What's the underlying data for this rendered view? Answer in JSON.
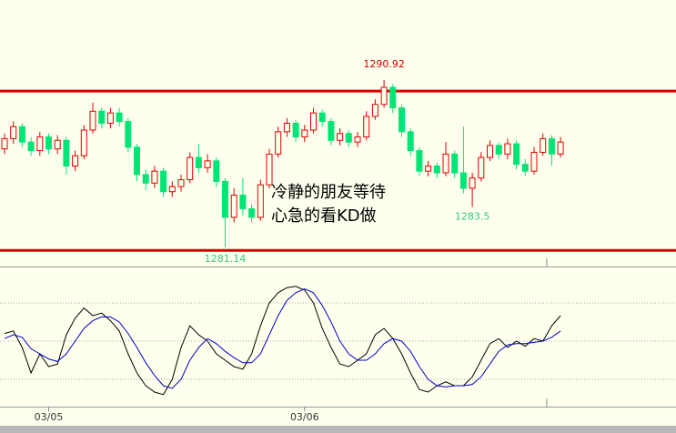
{
  "chart_data": [
    {
      "type": "candlestick",
      "categories": [
        null,
        null,
        null,
        null,
        null,
        "03/05",
        null,
        null,
        null,
        null,
        null,
        null,
        null,
        null,
        null,
        null,
        null,
        null,
        null,
        null,
        null,
        null,
        null,
        null,
        null,
        null,
        null,
        null,
        null,
        null,
        null,
        null,
        null,
        null,
        "03/06",
        null,
        null,
        null,
        null,
        null,
        null,
        null,
        null,
        null,
        null,
        null,
        null,
        null,
        null,
        null,
        null,
        null,
        null,
        null,
        null,
        null,
        null,
        null,
        null,
        null,
        null,
        null,
        null,
        null
      ],
      "open": [
        1286.9,
        1287.5,
        1288.2,
        1287.3,
        1286.8,
        1287.6,
        1286.9,
        1287.4,
        1285.9,
        1286.5,
        1288.0,
        1289.1,
        1288.4,
        1289.0,
        1288.5,
        1287.0,
        1285.4,
        1284.9,
        1285.6,
        1284.4,
        1284.7,
        1285.1,
        1286.4,
        1285.8,
        1286.2,
        1285.0,
        1282.9,
        1284.2,
        1283.4,
        1282.9,
        1284.8,
        1286.6,
        1287.9,
        1288.4,
        1287.6,
        1288.0,
        1289.0,
        1288.5,
        1287.4,
        1287.8,
        1287.3,
        1287.6,
        1288.8,
        1289.5,
        1290.5,
        1289.3,
        1287.9,
        1286.8,
        1285.6,
        1285.9,
        1285.5,
        1286.6,
        1285.5,
        1284.6,
        1285.2,
        1286.4,
        1287.1,
        1286.6,
        1287.2,
        1286.0,
        1285.6,
        1286.7,
        1287.5,
        1286.6
      ],
      "high": [
        1287.8,
        1288.5,
        1288.4,
        1287.6,
        1287.9,
        1287.8,
        1287.7,
        1287.6,
        1286.8,
        1288.3,
        1289.6,
        1289.3,
        1289.3,
        1289.3,
        1288.7,
        1287.2,
        1285.7,
        1285.9,
        1285.8,
        1285.0,
        1285.4,
        1286.7,
        1287.2,
        1286.6,
        1286.4,
        1285.2,
        1284.6,
        1285.2,
        1283.7,
        1285.1,
        1286.9,
        1288.2,
        1288.7,
        1288.6,
        1288.3,
        1289.3,
        1289.2,
        1288.7,
        1288.1,
        1288.0,
        1287.9,
        1289.1,
        1289.8,
        1290.92,
        1290.7,
        1289.5,
        1288.1,
        1287.0,
        1286.2,
        1286.1,
        1287.3,
        1286.8,
        1288.2,
        1285.5,
        1286.7,
        1287.4,
        1287.3,
        1287.5,
        1287.4,
        1286.3,
        1287.0,
        1287.8,
        1287.7,
        1287.6
      ],
      "low": [
        1286.6,
        1287.2,
        1287.0,
        1286.5,
        1286.5,
        1286.6,
        1286.6,
        1285.4,
        1285.6,
        1286.3,
        1287.8,
        1288.1,
        1288.1,
        1288.2,
        1286.7,
        1285.0,
        1284.5,
        1284.6,
        1284.1,
        1284.1,
        1284.4,
        1284.9,
        1285.5,
        1285.5,
        1284.7,
        1281.14,
        1282.6,
        1283.0,
        1282.6,
        1282.7,
        1284.6,
        1286.4,
        1287.6,
        1287.3,
        1287.3,
        1287.8,
        1288.2,
        1287.1,
        1287.1,
        1287.0,
        1287.0,
        1287.4,
        1288.6,
        1289.3,
        1289.0,
        1287.6,
        1286.5,
        1285.3,
        1285.3,
        1285.2,
        1285.3,
        1285.2,
        1284.3,
        1283.5,
        1285.0,
        1286.2,
        1286.3,
        1286.3,
        1285.7,
        1285.3,
        1285.4,
        1286.5,
        1285.9,
        1286.4
      ],
      "close": [
        1287.5,
        1288.2,
        1287.3,
        1286.8,
        1287.6,
        1286.9,
        1287.4,
        1285.9,
        1286.5,
        1288.0,
        1289.1,
        1288.4,
        1289.0,
        1288.5,
        1287.0,
        1285.4,
        1284.9,
        1285.6,
        1284.4,
        1284.7,
        1285.1,
        1286.4,
        1285.8,
        1286.2,
        1285.0,
        1282.9,
        1284.2,
        1283.4,
        1282.9,
        1284.8,
        1286.6,
        1287.9,
        1288.4,
        1287.6,
        1288.0,
        1289.0,
        1288.5,
        1287.4,
        1287.8,
        1287.3,
        1287.6,
        1288.8,
        1289.5,
        1290.5,
        1289.3,
        1287.9,
        1286.8,
        1285.6,
        1285.9,
        1285.5,
        1286.6,
        1285.5,
        1284.6,
        1285.2,
        1286.4,
        1287.1,
        1286.6,
        1287.2,
        1286.0,
        1285.6,
        1286.7,
        1287.5,
        1286.6,
        1287.3
      ],
      "up_color": "#e00000",
      "down_color": "#00e676",
      "ylim": [
        1280.08,
        1295.6
      ],
      "lines": [
        1290.28,
        1280.97
      ],
      "line_color": "#dd0000",
      "annotations": [
        "冷静的朋友等待",
        "心急的看KD做"
      ]
    },
    {
      "type": "line",
      "series": [
        {
          "color": "#000000",
          "values": [
            56,
            58,
            45,
            25,
            40,
            30,
            32,
            55,
            68,
            76,
            70,
            72,
            66,
            58,
            40,
            25,
            15,
            10,
            8,
            20,
            45,
            62,
            55,
            50,
            40,
            35,
            30,
            28,
            40,
            62,
            80,
            88,
            92,
            93,
            90,
            80,
            60,
            45,
            32,
            30,
            35,
            40,
            55,
            60,
            52,
            40,
            25,
            12,
            10,
            15,
            18,
            15,
            15,
            22,
            35,
            48,
            52,
            45,
            50,
            46,
            52,
            50,
            62,
            70
          ]
        },
        {
          "color": "#0000cc",
          "values": [
            52,
            55,
            53,
            44,
            40,
            36,
            34,
            40,
            50,
            60,
            66,
            69,
            69,
            65,
            56,
            45,
            33,
            23,
            15,
            13,
            20,
            35,
            45,
            52,
            48,
            42,
            37,
            33,
            33,
            40,
            55,
            70,
            82,
            88,
            91,
            88,
            78,
            65,
            50,
            40,
            35,
            35,
            40,
            48,
            52,
            50,
            42,
            30,
            20,
            15,
            14,
            15,
            15,
            16,
            22,
            32,
            42,
            47,
            48,
            48,
            49,
            50,
            53,
            58
          ]
        }
      ],
      "ylim": [
        0,
        100
      ],
      "grid_lines": [
        20,
        50,
        80
      ]
    }
  ]
}
